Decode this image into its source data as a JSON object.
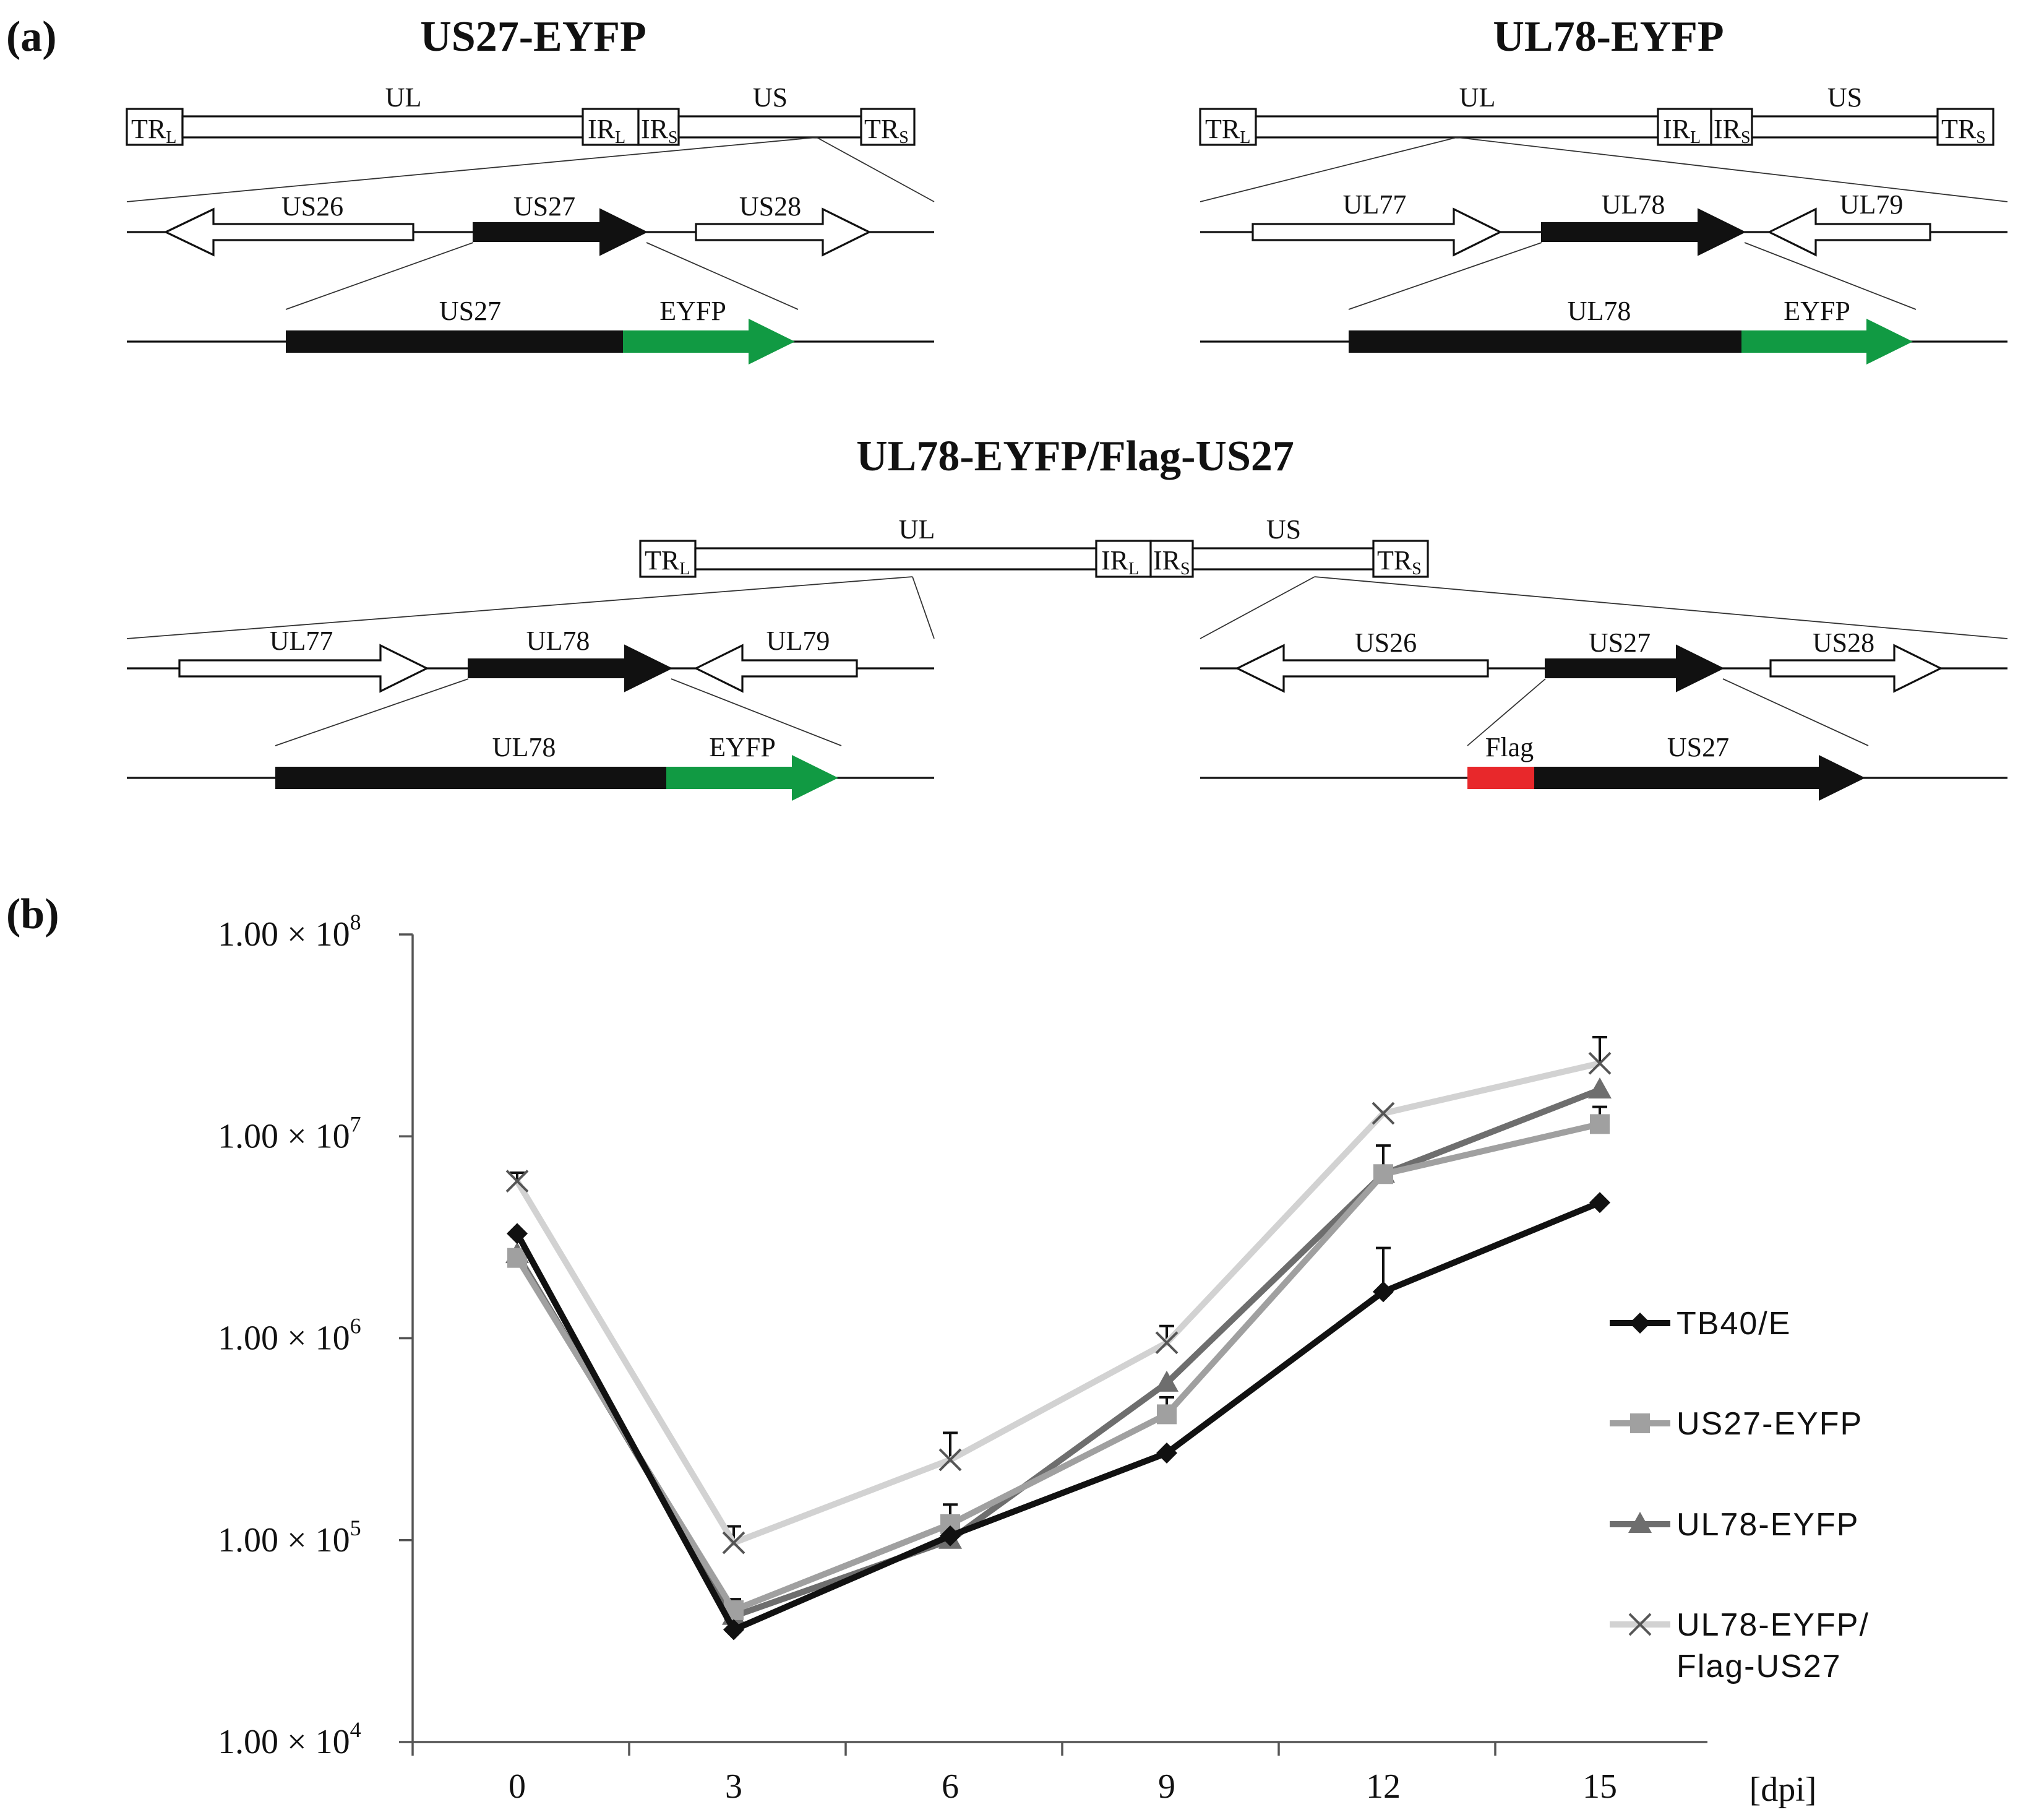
{
  "panel_a": {
    "label": "(a)",
    "constructs": [
      {
        "id": "us27-eyfp",
        "title": "US27-EYFP",
        "genome": {
          "tr_l_main": "TR",
          "tr_l_sub": "L",
          "ul": "UL",
          "ir_l_main": "IR",
          "ir_l_sub": "L",
          "ir_s_main": "IR",
          "ir_s_sub": "S",
          "us": "US",
          "tr_s_main": "TR",
          "tr_s_sub": "S"
        },
        "orfs": [
          "US26",
          "US27",
          "US28"
        ],
        "fusion": [
          "US27",
          "EYFP"
        ]
      },
      {
        "id": "ul78-eyfp",
        "title": "UL78-EYFP",
        "genome": {
          "tr_l_main": "TR",
          "tr_l_sub": "L",
          "ul": "UL",
          "ir_l_main": "IR",
          "ir_l_sub": "L",
          "ir_s_main": "IR",
          "ir_s_sub": "S",
          "us": "US",
          "tr_s_main": "TR",
          "tr_s_sub": "S"
        },
        "orfs": [
          "UL77",
          "UL78",
          "UL79"
        ],
        "fusion": [
          "UL78",
          "EYFP"
        ]
      },
      {
        "id": "ul78-eyfp-flag-us27",
        "title": "UL78-EYFP/Flag-US27",
        "genome": {
          "tr_l_main": "TR",
          "tr_l_sub": "L",
          "ul": "UL",
          "ir_l_main": "IR",
          "ir_l_sub": "L",
          "ir_s_main": "IR",
          "ir_s_sub": "S",
          "us": "US",
          "tr_s_main": "TR",
          "tr_s_sub": "S"
        },
        "orfs_left": [
          "UL77",
          "UL78",
          "UL79"
        ],
        "fusion_left": [
          "UL78",
          "EYFP"
        ],
        "orfs_right": [
          "US26",
          "US27",
          "US28"
        ],
        "fusion_right": [
          "Flag",
          "US27"
        ]
      }
    ],
    "colors": {
      "eyfp": "#119a43",
      "flag": "#e8282b",
      "orf": "#111111"
    }
  },
  "panel_b": {
    "label": "(b)",
    "chart_data": {
      "type": "line",
      "x": [
        0,
        3,
        6,
        9,
        12,
        15
      ],
      "xunit": "[dpi]",
      "yscale": "log",
      "ylim": [
        10000,
        100000000
      ],
      "ytick_labels": [
        {
          "base": "1.00 × 10",
          "exp": "4"
        },
        {
          "base": "1.00 × 10",
          "exp": "5"
        },
        {
          "base": "1.00 × 10",
          "exp": "6"
        },
        {
          "base": "1.00 × 10",
          "exp": "7"
        },
        {
          "base": "1.00 × 10",
          "exp": "8"
        }
      ],
      "series": [
        {
          "name": "TB40/E",
          "color": "#111111",
          "marker": "diamond",
          "values": [
            3300000,
            36000,
            105000,
            270000,
            1700000,
            4700000
          ],
          "errors": [
            0,
            0,
            0,
            0,
            1100000,
            0
          ]
        },
        {
          "name": "US27-EYFP",
          "color": "#a0a0a0",
          "marker": "square",
          "values": [
            2500000,
            45000,
            120000,
            420000,
            6500000,
            11500000
          ],
          "errors": [
            0,
            6000,
            30000,
            90000,
            2500000,
            2500000
          ]
        },
        {
          "name": "UL78-EYFP",
          "color": "#6e6e6e",
          "marker": "triangle",
          "values": [
            2600000,
            42000,
            100000,
            600000,
            6500000,
            17000000
          ],
          "errors": [
            0,
            0,
            0,
            0,
            0,
            0
          ]
        },
        {
          "name": "UL78-EYFP/ Flag-US27",
          "legend_lines": [
            "UL78-EYFP/",
            "Flag-US27"
          ],
          "color": "#d2d2d2",
          "marker": "x",
          "values": [
            6000000,
            97000,
            250000,
            950000,
            13000000,
            23000000
          ],
          "errors": [
            600000,
            20000,
            90000,
            200000,
            0,
            8000000
          ]
        }
      ]
    }
  }
}
